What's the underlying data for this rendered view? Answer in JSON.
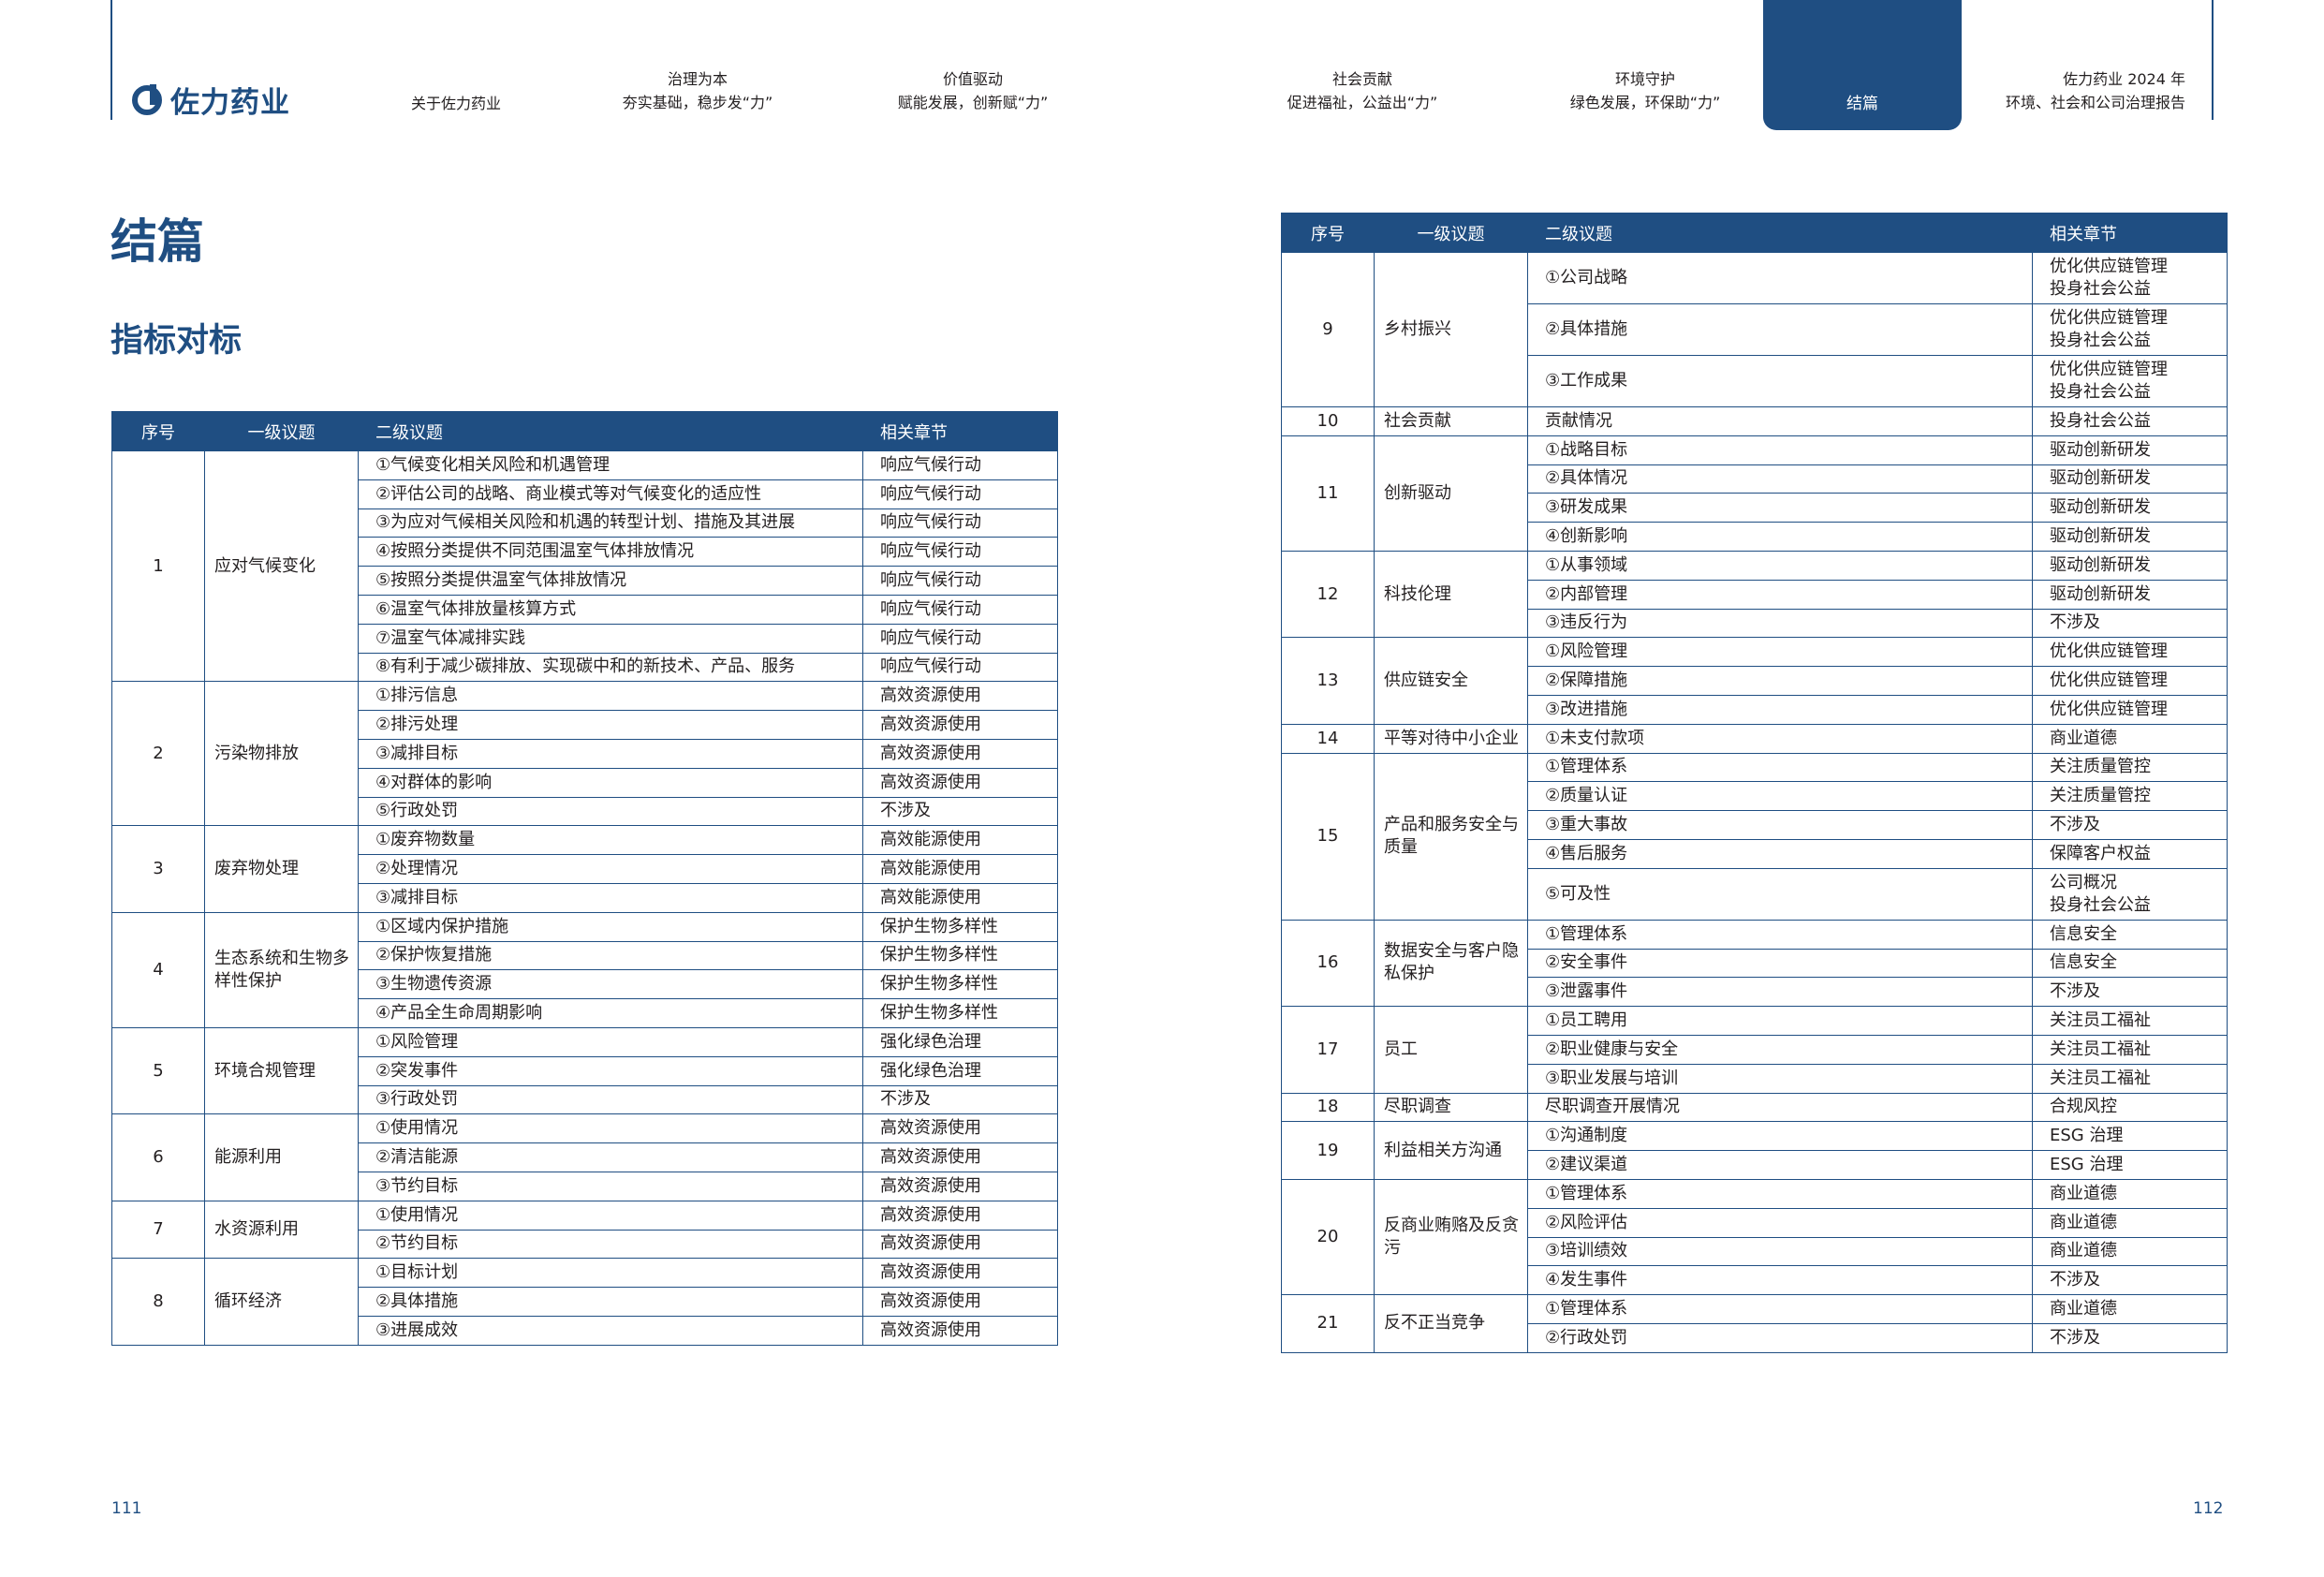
{
  "brand": {
    "name": "佐力药业",
    "color": "#1f4e82"
  },
  "nav": [
    {
      "line1": "关于佐力药业",
      "line2": ""
    },
    {
      "line1": "治理为本",
      "line2": "夯实基础，稳步发“力”"
    },
    {
      "line1": "价值驱动",
      "line2": "赋能发展，创新赋“力”"
    },
    {
      "line1": "社会贡献",
      "line2": "促进福祉，公益出“力”"
    },
    {
      "line1": "环境守护",
      "line2": "绿色发展，环保助“力”"
    },
    {
      "line1": "结篇",
      "line2": ""
    },
    {
      "line1": "佐力药业 2024 年",
      "line2": "环境、社会和公司治理报告"
    }
  ],
  "page": {
    "title": "结篇",
    "subtitle": "指标对标",
    "page_left": "111",
    "page_right": "112"
  },
  "table_headers": {
    "no": "序号",
    "l1": "一级议题",
    "l2": "二级议题",
    "ch": "相关章节"
  },
  "left_table": [
    {
      "no": "1",
      "topic": "应对气候变化",
      "items": [
        {
          "sub": "①气候变化相关风险和机遇管理",
          "ch": "响应气候行动"
        },
        {
          "sub": "②评估公司的战略、商业模式等对气候变化的适应性",
          "ch": "响应气候行动"
        },
        {
          "sub": "③为应对气候相关风险和机遇的转型计划、措施及其进展",
          "ch": "响应气候行动"
        },
        {
          "sub": "④按照分类提供不同范围温室气体排放情况",
          "ch": "响应气候行动"
        },
        {
          "sub": "⑤按照分类提供温室气体排放情况",
          "ch": "响应气候行动"
        },
        {
          "sub": "⑥温室气体排放量核算方式",
          "ch": "响应气候行动"
        },
        {
          "sub": "⑦温室气体减排实践",
          "ch": "响应气候行动"
        },
        {
          "sub": "⑧有利于减少碳排放、实现碳中和的新技术、产品、服务",
          "ch": "响应气候行动"
        }
      ]
    },
    {
      "no": "2",
      "topic": "污染物排放",
      "items": [
        {
          "sub": "①排污信息",
          "ch": "高效资源使用"
        },
        {
          "sub": "②排污处理",
          "ch": "高效资源使用"
        },
        {
          "sub": "③减排目标",
          "ch": "高效资源使用"
        },
        {
          "sub": "④对群体的影响",
          "ch": "高效资源使用"
        },
        {
          "sub": "⑤行政处罚",
          "ch": "不涉及"
        }
      ]
    },
    {
      "no": "3",
      "topic": "废弃物处理",
      "items": [
        {
          "sub": "①废弃物数量",
          "ch": "高效能源使用"
        },
        {
          "sub": "②处理情况",
          "ch": "高效能源使用"
        },
        {
          "sub": "③减排目标",
          "ch": "高效能源使用"
        }
      ]
    },
    {
      "no": "4",
      "topic": "生态系统和生物多样性保护",
      "items": [
        {
          "sub": "①区域内保护措施",
          "ch": "保护生物多样性"
        },
        {
          "sub": "②保护恢复措施",
          "ch": "保护生物多样性"
        },
        {
          "sub": "③生物遗传资源",
          "ch": "保护生物多样性"
        },
        {
          "sub": "④产品全生命周期影响",
          "ch": "保护生物多样性"
        }
      ]
    },
    {
      "no": "5",
      "topic": "环境合规管理",
      "items": [
        {
          "sub": "①风险管理",
          "ch": "强化绿色治理"
        },
        {
          "sub": "②突发事件",
          "ch": "强化绿色治理"
        },
        {
          "sub": "③行政处罚",
          "ch": "不涉及"
        }
      ]
    },
    {
      "no": "6",
      "topic": "能源利用",
      "items": [
        {
          "sub": "①使用情况",
          "ch": "高效资源使用"
        },
        {
          "sub": "②清洁能源",
          "ch": "高效资源使用"
        },
        {
          "sub": "③节约目标",
          "ch": "高效资源使用"
        }
      ]
    },
    {
      "no": "7",
      "topic": "水资源利用",
      "items": [
        {
          "sub": "①使用情况",
          "ch": "高效资源使用"
        },
        {
          "sub": "②节约目标",
          "ch": "高效资源使用"
        }
      ]
    },
    {
      "no": "8",
      "topic": "循环经济",
      "items": [
        {
          "sub": "①目标计划",
          "ch": "高效资源使用"
        },
        {
          "sub": "②具体措施",
          "ch": "高效资源使用"
        },
        {
          "sub": "③进展成效",
          "ch": "高效资源使用"
        }
      ]
    }
  ],
  "right_table": [
    {
      "no": "9",
      "topic": "乡村振兴",
      "items": [
        {
          "sub": "①公司战略",
          "ch": "优化供应链管理\n投身社会公益"
        },
        {
          "sub": "②具体措施",
          "ch": "优化供应链管理\n投身社会公益"
        },
        {
          "sub": "③工作成果",
          "ch": "优化供应链管理\n投身社会公益"
        }
      ]
    },
    {
      "no": "10",
      "topic": "社会贡献",
      "items": [
        {
          "sub": "贡献情况",
          "ch": "投身社会公益"
        }
      ]
    },
    {
      "no": "11",
      "topic": "创新驱动",
      "items": [
        {
          "sub": "①战略目标",
          "ch": "驱动创新研发"
        },
        {
          "sub": "②具体情况",
          "ch": "驱动创新研发"
        },
        {
          "sub": "③研发成果",
          "ch": "驱动创新研发"
        },
        {
          "sub": "④创新影响",
          "ch": "驱动创新研发"
        }
      ]
    },
    {
      "no": "12",
      "topic": "科技伦理",
      "items": [
        {
          "sub": "①从事领域",
          "ch": "驱动创新研发"
        },
        {
          "sub": "②内部管理",
          "ch": "驱动创新研发"
        },
        {
          "sub": "③违反行为",
          "ch": "不涉及"
        }
      ]
    },
    {
      "no": "13",
      "topic": "供应链安全",
      "items": [
        {
          "sub": "①风险管理",
          "ch": "优化供应链管理"
        },
        {
          "sub": "②保障措施",
          "ch": "优化供应链管理"
        },
        {
          "sub": "③改进措施",
          "ch": "优化供应链管理"
        }
      ]
    },
    {
      "no": "14",
      "topic": "平等对待中小企业",
      "items": [
        {
          "sub": "①未支付款项",
          "ch": "商业道德"
        }
      ]
    },
    {
      "no": "15",
      "topic": "产品和服务安全与质量",
      "items": [
        {
          "sub": "①管理体系",
          "ch": "关注质量管控"
        },
        {
          "sub": "②质量认证",
          "ch": "关注质量管控"
        },
        {
          "sub": "③重大事故",
          "ch": "不涉及"
        },
        {
          "sub": "④售后服务",
          "ch": "保障客户权益"
        },
        {
          "sub": "⑤可及性",
          "ch": "公司概况\n投身社会公益"
        }
      ]
    },
    {
      "no": "16",
      "topic": "数据安全与客户隐私保护",
      "items": [
        {
          "sub": "①管理体系",
          "ch": "信息安全"
        },
        {
          "sub": "②安全事件",
          "ch": "信息安全"
        },
        {
          "sub": "③泄露事件",
          "ch": "不涉及"
        }
      ]
    },
    {
      "no": "17",
      "topic": "员工",
      "items": [
        {
          "sub": "①员工聘用",
          "ch": "关注员工福祉"
        },
        {
          "sub": "②职业健康与安全",
          "ch": "关注员工福祉"
        },
        {
          "sub": "③职业发展与培训",
          "ch": "关注员工福祉"
        }
      ]
    },
    {
      "no": "18",
      "topic": "尽职调查",
      "items": [
        {
          "sub": "尽职调查开展情况",
          "ch": "合规风控"
        }
      ]
    },
    {
      "no": "19",
      "topic": "利益相关方沟通",
      "items": [
        {
          "sub": "①沟通制度",
          "ch": "ESG 治理"
        },
        {
          "sub": "②建议渠道",
          "ch": "ESG 治理"
        }
      ]
    },
    {
      "no": "20",
      "topic": "反商业贿赂及反贪污",
      "items": [
        {
          "sub": "①管理体系",
          "ch": "商业道德"
        },
        {
          "sub": "②风险评估",
          "ch": "商业道德"
        },
        {
          "sub": "③培训绩效",
          "ch": "商业道德"
        },
        {
          "sub": "④发生事件",
          "ch": "不涉及"
        }
      ]
    },
    {
      "no": "21",
      "topic": "反不正当竞争",
      "items": [
        {
          "sub": "①管理体系",
          "ch": "商业道德"
        },
        {
          "sub": "②行政处罚",
          "ch": "不涉及"
        }
      ]
    }
  ]
}
